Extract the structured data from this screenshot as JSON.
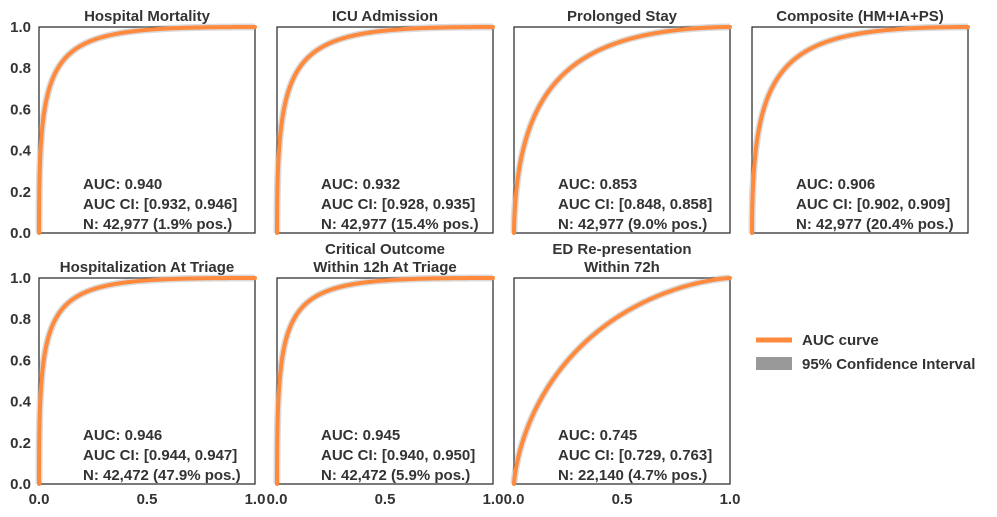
{
  "colors": {
    "curve": "#ff8a3d",
    "ci": "#999999",
    "text": "#333333",
    "axis": "#222222"
  },
  "legend": {
    "curve_label": "AUC curve",
    "ci_label": "95% Confidence Interval"
  },
  "chart_data": [
    {
      "type": "line",
      "title": [
        "Hospital Mortality"
      ],
      "xlim": [
        0,
        1
      ],
      "ylim": [
        0,
        1
      ],
      "xticks": [
        "0.0",
        "0.5",
        "1.0"
      ],
      "yticks": [
        "0.0",
        "0.2",
        "0.4",
        "0.6",
        "0.8",
        "1.0"
      ],
      "show_xticks": false,
      "show_yticks": true,
      "auc": 0.94,
      "stats": [
        "AUC: 0.940",
        "AUC CI: [0.932, 0.946]",
        "N: 42,977 (1.9% pos.)"
      ]
    },
    {
      "type": "line",
      "title": [
        "ICU Admission"
      ],
      "xlim": [
        0,
        1
      ],
      "ylim": [
        0,
        1
      ],
      "xticks": [
        "0.0",
        "0.5",
        "1.0"
      ],
      "yticks": [
        "0.0",
        "0.2",
        "0.4",
        "0.6",
        "0.8",
        "1.0"
      ],
      "show_xticks": false,
      "show_yticks": false,
      "auc": 0.932,
      "stats": [
        "AUC: 0.932",
        "AUC CI: [0.928, 0.935]",
        "N: 42,977 (15.4% pos.)"
      ]
    },
    {
      "type": "line",
      "title": [
        "Prolonged Stay"
      ],
      "xlim": [
        0,
        1
      ],
      "ylim": [
        0,
        1
      ],
      "xticks": [
        "0.0",
        "0.5",
        "1.0"
      ],
      "yticks": [
        "0.0",
        "0.2",
        "0.4",
        "0.6",
        "0.8",
        "1.0"
      ],
      "show_xticks": false,
      "show_yticks": false,
      "auc": 0.853,
      "stats": [
        "AUC: 0.853",
        "AUC CI: [0.848, 0.858]",
        "N: 42,977 (9.0% pos.)"
      ]
    },
    {
      "type": "line",
      "title": [
        "Composite (HM+IA+PS)"
      ],
      "xlim": [
        0,
        1
      ],
      "ylim": [
        0,
        1
      ],
      "xticks": [
        "0.0",
        "0.5",
        "1.0"
      ],
      "yticks": [
        "0.0",
        "0.2",
        "0.4",
        "0.6",
        "0.8",
        "1.0"
      ],
      "show_xticks": false,
      "show_yticks": false,
      "auc": 0.906,
      "stats": [
        "AUC: 0.906",
        "AUC CI: [0.902, 0.909]",
        "N: 42,977 (20.4% pos.)"
      ]
    },
    {
      "type": "line",
      "title": [
        "Hospitalization At Triage"
      ],
      "xlim": [
        0,
        1
      ],
      "ylim": [
        0,
        1
      ],
      "xticks": [
        "0.0",
        "0.5",
        "1.0"
      ],
      "yticks": [
        "0.0",
        "0.2",
        "0.4",
        "0.6",
        "0.8",
        "1.0"
      ],
      "show_xticks": true,
      "show_yticks": true,
      "auc": 0.946,
      "stats": [
        "AUC: 0.946",
        "AUC CI: [0.944, 0.947]",
        "N: 42,472 (47.9% pos.)"
      ]
    },
    {
      "type": "line",
      "title": [
        "Critical Outcome",
        "Within 12h At Triage"
      ],
      "xlim": [
        0,
        1
      ],
      "ylim": [
        0,
        1
      ],
      "xticks": [
        "0.0",
        "0.5",
        "1.0"
      ],
      "yticks": [
        "0.0",
        "0.2",
        "0.4",
        "0.6",
        "0.8",
        "1.0"
      ],
      "show_xticks": true,
      "show_yticks": false,
      "auc": 0.945,
      "stats": [
        "AUC: 0.945",
        "AUC CI: [0.940, 0.950]",
        "N: 42,472 (5.9% pos.)"
      ]
    },
    {
      "type": "line",
      "title": [
        "ED Re-presentation",
        "Within 72h"
      ],
      "xlim": [
        0,
        1
      ],
      "ylim": [
        0,
        1
      ],
      "xticks": [
        "0.0",
        "0.5",
        "1.0"
      ],
      "yticks": [
        "0.0",
        "0.2",
        "0.4",
        "0.6",
        "0.8",
        "1.0"
      ],
      "show_xticks": true,
      "show_yticks": false,
      "auc": 0.745,
      "stats": [
        "AUC: 0.745",
        "AUC CI: [0.729, 0.763]",
        "N: 22,140 (4.7% pos.)"
      ]
    }
  ]
}
